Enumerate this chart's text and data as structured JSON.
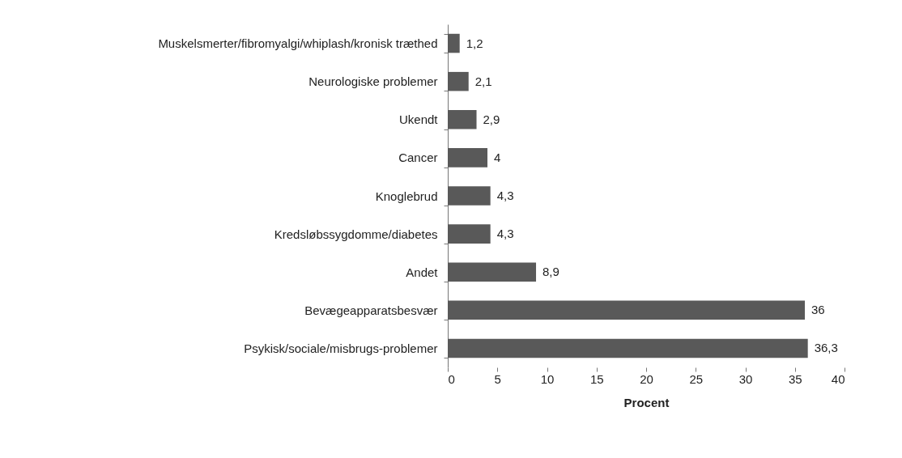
{
  "chart_data": {
    "type": "bar",
    "orientation": "horizontal",
    "xlabel": "Procent",
    "categories": [
      "Muskelsmerter/fibromyalgi/whiplash/kronisk træthed",
      "Neurologiske problemer",
      "Ukendt",
      "Cancer",
      "Knoglebrud",
      "Kredsløbssygdomme/diabetes",
      "Andet",
      "Bevægeapparatsbesvær",
      "Psykisk/sociale/misbrugs-problemer"
    ],
    "values": [
      1.2,
      2.1,
      2.9,
      4,
      4.3,
      4.3,
      8.9,
      36,
      36.3
    ],
    "value_labels": [
      "1,2",
      "2,1",
      "2,9",
      "4",
      "4,3",
      "4,3",
      "8,9",
      "36",
      "36,3"
    ],
    "color": "#595959",
    "xlim": [
      0,
      40
    ],
    "xticks": [
      0,
      5,
      10,
      15,
      20,
      25,
      30,
      35,
      40
    ],
    "grid": false
  }
}
